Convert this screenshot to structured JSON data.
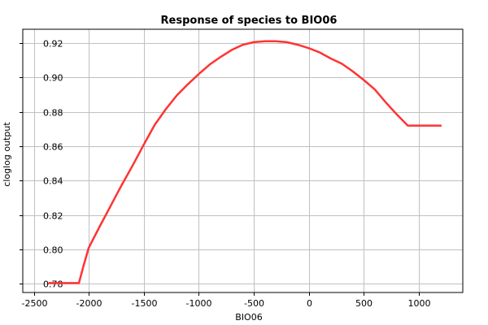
{
  "chart_data": {
    "type": "line",
    "title": "Response of species to BIO06",
    "xlabel": "BIO06",
    "ylabel": "cloglog output",
    "xlim": [
      -2600,
      1400
    ],
    "ylim": [
      0.775,
      0.928
    ],
    "x_ticks": [
      -2500,
      -2000,
      -1500,
      -1000,
      -500,
      0,
      500,
      1000
    ],
    "x_tick_labels": [
      "-2500",
      "-2000",
      "-1500",
      "-1000",
      "-500",
      "0",
      "500",
      "1000"
    ],
    "y_ticks": [
      0.78,
      0.8,
      0.82,
      0.84,
      0.86,
      0.88,
      0.9,
      0.92
    ],
    "y_tick_labels": [
      "0.78",
      "0.80",
      "0.82",
      "0.84",
      "0.86",
      "0.88",
      "0.90",
      "0.92"
    ],
    "grid": true,
    "series": [
      {
        "color": "#ff3333",
        "x": [
          -2360,
          -2090,
          -2050,
          -2000,
          -1900,
          -1800,
          -1700,
          -1600,
          -1500,
          -1400,
          -1300,
          -1200,
          -1100,
          -1000,
          -900,
          -800,
          -700,
          -600,
          -500,
          -400,
          -300,
          -200,
          -100,
          0,
          100,
          200,
          300,
          400,
          500,
          600,
          700,
          800,
          900,
          920,
          1200
        ],
        "y": [
          0.7805,
          0.7805,
          0.79,
          0.801,
          0.8135,
          0.8255,
          0.8375,
          0.849,
          0.861,
          0.8725,
          0.8815,
          0.8895,
          0.896,
          0.902,
          0.9075,
          0.912,
          0.916,
          0.919,
          0.9205,
          0.921,
          0.921,
          0.9205,
          0.919,
          0.917,
          0.9145,
          0.911,
          0.908,
          0.9035,
          0.8985,
          0.893,
          0.8855,
          0.8785,
          0.872,
          0.872,
          0.872
        ]
      }
    ]
  }
}
